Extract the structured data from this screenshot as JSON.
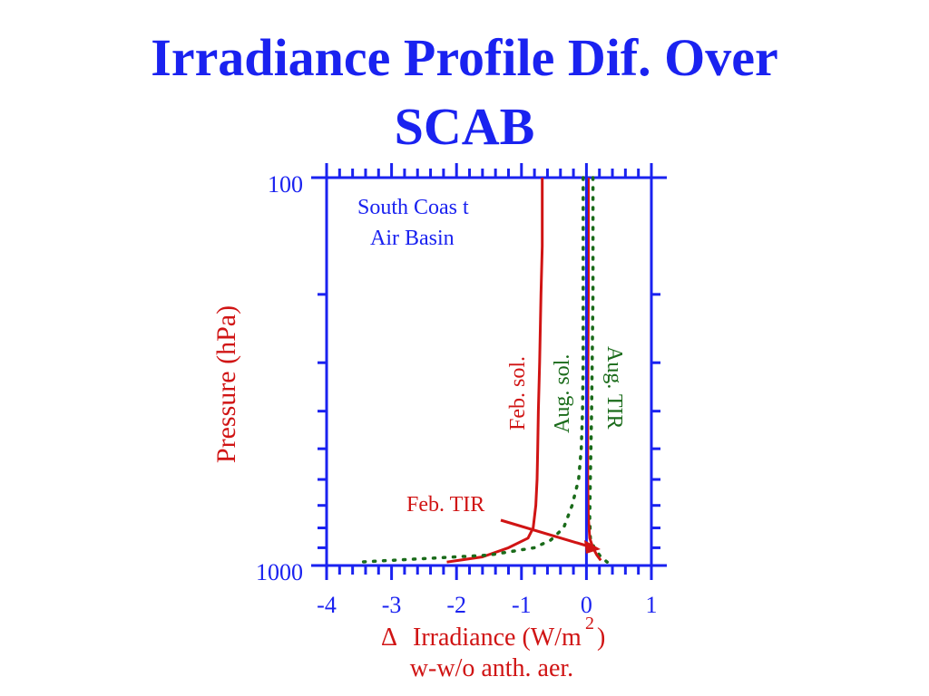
{
  "slide": {
    "title_line1": "Irradiance Profile Dif. Over",
    "title_line2": "SCAB"
  },
  "colors": {
    "title": "#1a22f0",
    "axes": "#1a22f0",
    "red": "#d01414",
    "green": "#1a6b1a",
    "blue": "#1a22f0"
  },
  "chart_data": {
    "type": "line",
    "xlabel_line1_symbol": "Δ",
    "xlabel_line1_text": "Irradiance (W/m",
    "xlabel_superscript": "2",
    "xlabel_close": ")",
    "xlabel_line2": "w-w/o anth. aer.",
    "ylabel": "Pressure (hPa)",
    "xlim": [
      -4,
      1
    ],
    "ylim": [
      1000,
      100
    ],
    "y_scale": "log",
    "x_ticks": [
      "-4",
      "-3",
      "-2",
      "-1",
      "0",
      "1"
    ],
    "x_tick_values": [
      -4,
      -3,
      -2,
      -1,
      0,
      1
    ],
    "y_ticks": [
      "100",
      "1000"
    ],
    "y_tick_values": [
      100,
      1000
    ],
    "annotation_lines": [
      "South Coas t",
      "Air Basin"
    ],
    "series": [
      {
        "name": "Feb. sol.",
        "style": "solid",
        "color": "#d01414",
        "x": [
          -0.68,
          -0.68,
          -0.7,
          -0.72,
          -0.74,
          -0.75,
          -0.76,
          -0.78,
          -0.82,
          -0.9,
          -1.2,
          -1.6,
          -2.15
        ],
        "y": [
          100,
          150,
          200,
          300,
          400,
          500,
          600,
          700,
          800,
          850,
          900,
          950,
          980
        ]
      },
      {
        "name": "Aug. sol.",
        "style": "dotted",
        "color": "#1a6b1a",
        "x": [
          -0.05,
          -0.05,
          -0.05,
          -0.06,
          -0.08,
          -0.12,
          -0.22,
          -0.35,
          -0.55,
          -0.8,
          -1.5,
          -2.5,
          -3.5
        ],
        "y": [
          100,
          200,
          300,
          400,
          500,
          600,
          700,
          800,
          860,
          900,
          940,
          960,
          980
        ]
      },
      {
        "name": "Aug. TIR",
        "style": "dotted",
        "color": "#1a6b1a",
        "x": [
          0.1,
          0.1,
          0.08,
          0.06,
          0.05,
          0.06,
          0.12,
          0.22,
          0.32
        ],
        "y": [
          100,
          200,
          400,
          600,
          750,
          850,
          900,
          950,
          980
        ]
      },
      {
        "name": "Feb. TIR",
        "style": "solid",
        "color": "#d01414",
        "x": [
          0.03,
          0.03,
          0.02,
          0.02,
          0.03,
          0.05,
          0.1,
          0.16,
          0.22
        ],
        "y": [
          100,
          200,
          400,
          600,
          750,
          850,
          900,
          940,
          970
        ]
      },
      {
        "name": "",
        "style": "solid",
        "color": "#1a22f0",
        "x": [
          0,
          0
        ],
        "y": [
          100,
          1000
        ]
      }
    ],
    "series_labels": {
      "feb_sol": "Feb. sol.",
      "aug_sol": "Aug. sol.",
      "aug_tir": "Aug. TIR",
      "feb_tir": "Feb. TIR"
    },
    "grid": false,
    "legend": "none"
  }
}
